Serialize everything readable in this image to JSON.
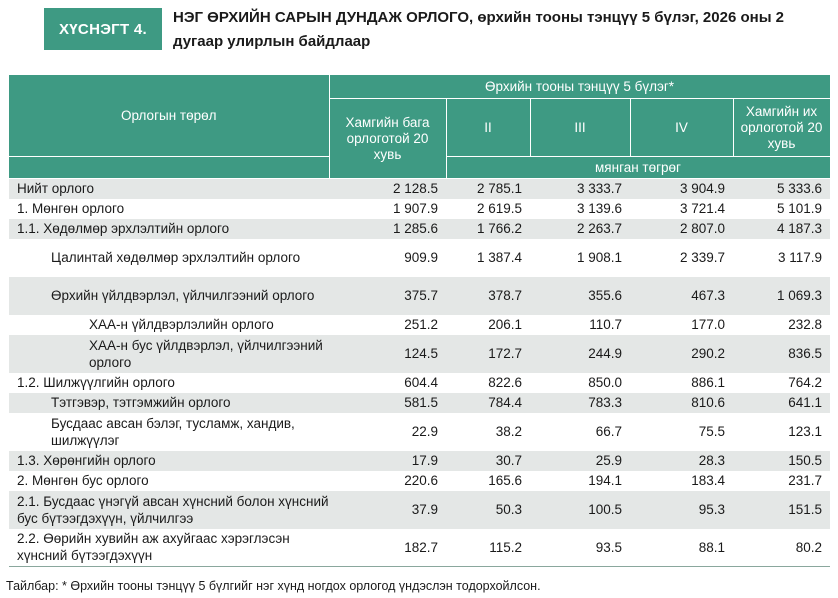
{
  "header": {
    "badge": "ХҮСНЭГТ 4.",
    "title": "НЭГ ӨРХИЙН САРЫН ДУНДАЖ ОРЛОГО, өрхийн тооны тэнцүү 5 бүлэг, 2026 оны 2 дугаар улирлын байдлаар"
  },
  "table": {
    "row_header": "Орлогын төрөл",
    "group_header": "Өрхийн тооны тэнцүү 5 бүлэг*",
    "columns": [
      "Хамгийн бага орлоготой 20 хувь",
      "II",
      "III",
      "IV",
      "Хамгийн их орлоготой 20 хувь"
    ],
    "unit": "мянган төгрөг",
    "rows": [
      {
        "label": "Нийт орлого",
        "values": [
          "2 128.5",
          "2 785.1",
          "3 333.7",
          "3 904.9",
          "5 333.6"
        ]
      },
      {
        "label": "1. Мөнгөн орлого",
        "values": [
          "1 907.9",
          "2 619.5",
          "3 139.6",
          "3 721.4",
          "5 101.9"
        ]
      },
      {
        "label": "1.1. Хөдөлмөр эрхлэлтийн орлого",
        "values": [
          "1 285.6",
          "1 766.2",
          "2 263.7",
          "2 807.0",
          "4 187.3"
        ]
      },
      {
        "label": "Цалинтай хөдөлмөр эрхлэлтийн орлого",
        "values": [
          "909.9",
          "1 387.4",
          "1 908.1",
          "2 339.7",
          "3 117.9"
        ]
      },
      {
        "label": "Өрхийн үйлдвэрлэл, үйлчилгээний орлого",
        "values": [
          "375.7",
          "378.7",
          "355.6",
          "467.3",
          "1 069.3"
        ]
      },
      {
        "label": "ХАА-н үйлдвэрлэлийн орлого",
        "values": [
          "251.2",
          "206.1",
          "110.7",
          "177.0",
          "232.8"
        ]
      },
      {
        "label": "ХАА-н бус үйлдвэрлэл, үйлчилгээний орлого",
        "values": [
          "124.5",
          "172.7",
          "244.9",
          "290.2",
          "836.5"
        ]
      },
      {
        "label": "1.2. Шилжүүлгийн орлого",
        "values": [
          "604.4",
          "822.6",
          "850.0",
          "886.1",
          "764.2"
        ]
      },
      {
        "label": "Тэтгэвэр, тэтгэмжийн орлого",
        "values": [
          "581.5",
          "784.4",
          "783.3",
          "810.6",
          "641.1"
        ]
      },
      {
        "label": "Бусдаас авсан бэлэг, тусламж, хандив, шилжүүлэг",
        "values": [
          "22.9",
          "38.2",
          "66.7",
          "75.5",
          "123.1"
        ]
      },
      {
        "label": "1.3. Хөрөнгийн орлого",
        "values": [
          "17.9",
          "30.7",
          "25.9",
          "28.3",
          "150.5"
        ]
      },
      {
        "label": "2. Мөнгөн бус орлого",
        "values": [
          "220.6",
          "165.6",
          "194.1",
          "183.4",
          "231.7"
        ]
      },
      {
        "label": "2.1. Бусдаас үнэгүй авсан хүнсний болон хүнсний бус бүтээгдэхүүн, үйлчилгээ",
        "values": [
          "37.9",
          "50.3",
          "100.5",
          "95.3",
          "151.5"
        ]
      },
      {
        "label": "2.2. Өөрийн хувийн аж ахуйгаас хэрэглэсэн хүнсний бүтээгдэхүүн",
        "values": [
          "182.7",
          "115.2",
          "93.5",
          "88.1",
          "80.2"
        ]
      }
    ]
  },
  "note": "Тайлбар: * Өрхийн тооны тэнцүү 5 бүлгийг нэг хүнд ногдох орлогод үндэслэн тодорхойлсон."
}
